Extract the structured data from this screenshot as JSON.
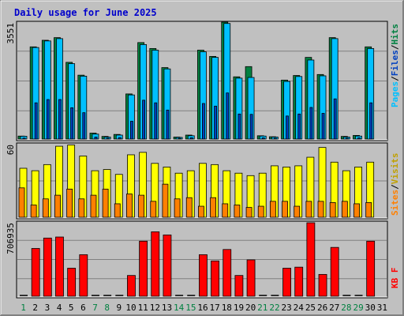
{
  "title": "Daily usage for June 2025",
  "colors": {
    "background": "#C0C0C0",
    "title": "#0000CC",
    "hits": "#008040",
    "files": "#00C0FF",
    "pages": "#0040C0",
    "visits": "#FFFF00",
    "sites": "#FF8000",
    "kbytes": "#FF0000",
    "weekday_label": "#000000",
    "weekend_label": "#008040"
  },
  "chart_data": [
    {
      "type": "bar",
      "panel": "hits-files-pages",
      "days": [
        "1",
        "2",
        "3",
        "4",
        "5",
        "6",
        "7",
        "8",
        "9",
        "10",
        "11",
        "12",
        "13",
        "14",
        "15",
        "16",
        "17",
        "18",
        "19",
        "20",
        "21",
        "22",
        "23",
        "24",
        "25",
        "26",
        "27",
        "28",
        "29",
        "30",
        "31"
      ],
      "ymax_label": "3551",
      "ylim": [
        0,
        3551
      ],
      "legend": [
        "Pages",
        "Files",
        "Hits"
      ],
      "series": [
        {
          "name": "Hits",
          "values": [
            90,
            2800,
            3000,
            3080,
            2330,
            1940,
            180,
            80,
            140,
            1370,
            2930,
            2750,
            2170,
            60,
            120,
            2700,
            2510,
            3551,
            1890,
            2200,
            100,
            70,
            1790,
            1930,
            2480,
            1960,
            3080,
            80,
            110,
            2800,
            0
          ]
        },
        {
          "name": "Files",
          "values": [
            85,
            2780,
            2980,
            3050,
            2290,
            1910,
            150,
            60,
            120,
            1340,
            2870,
            2700,
            2130,
            50,
            100,
            2650,
            2480,
            3510,
            1850,
            1870,
            90,
            60,
            1750,
            1900,
            2400,
            1920,
            3050,
            60,
            90,
            2750,
            0
          ]
        },
        {
          "name": "Pages",
          "values": [
            30,
            1100,
            1200,
            1200,
            950,
            800,
            60,
            25,
            45,
            540,
            1180,
            1100,
            880,
            20,
            40,
            1080,
            1000,
            1400,
            760,
            750,
            35,
            25,
            700,
            760,
            960,
            780,
            1220,
            25,
            35,
            1100,
            0
          ]
        }
      ]
    },
    {
      "type": "bar",
      "panel": "visits-sites",
      "days": [
        "1",
        "2",
        "3",
        "4",
        "5",
        "6",
        "7",
        "8",
        "9",
        "10",
        "11",
        "12",
        "13",
        "14",
        "15",
        "16",
        "17",
        "18",
        "19",
        "20",
        "21",
        "22",
        "23",
        "24",
        "25",
        "26",
        "27",
        "28",
        "29",
        "30",
        "31"
      ],
      "ymax_label": "60",
      "ylim": [
        0,
        60
      ],
      "legend": [
        "Sites",
        "Visits"
      ],
      "series": [
        {
          "name": "Visits",
          "values": [
            40,
            38,
            43,
            58,
            59,
            50,
            38,
            39,
            35,
            51,
            53,
            44,
            41,
            36,
            38,
            44,
            43,
            38,
            36,
            34,
            36,
            42,
            41,
            42,
            49,
            57,
            45,
            38,
            41,
            45,
            0
          ]
        },
        {
          "name": "Sites",
          "values": [
            24,
            10,
            15,
            18,
            23,
            15,
            18,
            23,
            11,
            19,
            18,
            13,
            27,
            15,
            16,
            9,
            16,
            11,
            10,
            8,
            9,
            13,
            13,
            9,
            13,
            13,
            12,
            13,
            11,
            12,
            0
          ]
        }
      ]
    },
    {
      "type": "bar",
      "panel": "kbytes",
      "days": [
        "1",
        "2",
        "3",
        "4",
        "5",
        "6",
        "7",
        "8",
        "9",
        "10",
        "11",
        "12",
        "13",
        "14",
        "15",
        "16",
        "17",
        "18",
        "19",
        "20",
        "21",
        "22",
        "23",
        "24",
        "25",
        "26",
        "27",
        "28",
        "29",
        "30",
        "31"
      ],
      "ymax_label": "706935",
      "ylim": [
        0,
        706935
      ],
      "legend": [
        "KB F"
      ],
      "series": [
        {
          "name": "KB F",
          "values": [
            0,
            460000,
            560000,
            570000,
            270000,
            400000,
            0,
            0,
            0,
            200000,
            530000,
            620000,
            590000,
            0,
            0,
            400000,
            340000,
            450000,
            200000,
            350000,
            0,
            0,
            270000,
            280000,
            706935,
            210000,
            470000,
            0,
            0,
            530000,
            0
          ]
        }
      ]
    }
  ],
  "weekend_days": [
    "1",
    "7",
    "8",
    "14",
    "15",
    "21",
    "22",
    "28",
    "29"
  ]
}
